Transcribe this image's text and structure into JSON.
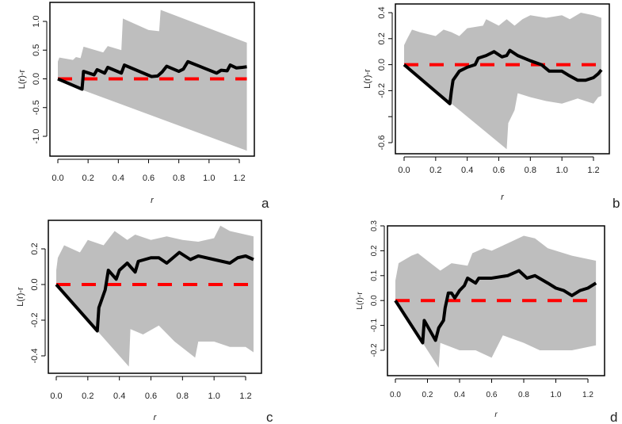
{
  "chart_data": [
    {
      "panel": "a",
      "type": "line",
      "title": "",
      "xlabel": "r",
      "ylabel": "L(r)-r",
      "xlim": [
        0,
        1.25
      ],
      "ylim": [
        -1.35,
        1.3
      ],
      "xticks": [
        0,
        0.2,
        0.4,
        0.6,
        0.8,
        1.0,
        1.2
      ],
      "xtick_labels": [
        "0.0",
        "0.2",
        "0.4",
        "0.6",
        "0.8",
        "1.0",
        "1.2"
      ],
      "yticks": [
        -1.0,
        -0.5,
        0,
        0.5,
        1.0
      ],
      "ytick_labels": [
        "-1.0",
        "-0.5",
        "0.0",
        "0.5",
        "1.0"
      ],
      "series": [
        {
          "name": "envelope upper",
          "points": [
            [
              0,
              0.3
            ],
            [
              0.01,
              0.37
            ],
            [
              0.1,
              0.33
            ],
            [
              0.12,
              0.38
            ],
            [
              0.15,
              0.36
            ],
            [
              0.17,
              0.56
            ],
            [
              0.3,
              0.46
            ],
            [
              0.33,
              0.57
            ],
            [
              0.42,
              0.5
            ],
            [
              0.43,
              1.05
            ],
            [
              0.6,
              0.85
            ],
            [
              0.67,
              0.83
            ],
            [
              0.68,
              1.2
            ],
            [
              1.25,
              0.63
            ]
          ]
        },
        {
          "name": "envelope lower",
          "points": [
            [
              0,
              0
            ],
            [
              0.17,
              -0.2
            ],
            [
              1.25,
              -1.25
            ]
          ]
        },
        {
          "name": "observed",
          "points": [
            [
              0,
              0
            ],
            [
              0.16,
              -0.18
            ],
            [
              0.17,
              0.13
            ],
            [
              0.24,
              0.07
            ],
            [
              0.26,
              0.16
            ],
            [
              0.31,
              0.1
            ],
            [
              0.33,
              0.2
            ],
            [
              0.42,
              0.1
            ],
            [
              0.44,
              0.24
            ],
            [
              0.62,
              0.04
            ],
            [
              0.66,
              0.05
            ],
            [
              0.69,
              0.12
            ],
            [
              0.72,
              0.22
            ],
            [
              0.8,
              0.13
            ],
            [
              0.83,
              0.17
            ],
            [
              0.86,
              0.3
            ],
            [
              1.05,
              0.1
            ],
            [
              1.08,
              0.15
            ],
            [
              1.12,
              0.14
            ],
            [
              1.14,
              0.24
            ],
            [
              1.18,
              0.19
            ],
            [
              1.22,
              0.2
            ],
            [
              1.25,
              0.21
            ]
          ]
        },
        {
          "name": "theoretical",
          "points": [
            [
              0,
              0
            ],
            [
              1.25,
              0
            ]
          ]
        }
      ]
    },
    {
      "panel": "b",
      "type": "line",
      "title": "",
      "xlabel": "r",
      "ylabel": "L(r)-r",
      "xlim": [
        0,
        1.25
      ],
      "ylim": [
        -0.7,
        0.45
      ],
      "xticks": [
        0,
        0.2,
        0.4,
        0.6,
        0.8,
        1.0,
        1.2
      ],
      "xtick_labels": [
        "0.0",
        "0.2",
        "0.4",
        "0.6",
        "0.8",
        "1.0",
        "1.2"
      ],
      "yticks": [
        -0.6,
        -0.4,
        -0.2,
        0,
        0.2,
        0.4
      ],
      "ytick_labels": [
        "-0.6",
        "",
        "-0.2",
        "0.0",
        "0.2",
        "0.4"
      ],
      "series": [
        {
          "name": "envelope upper",
          "points": [
            [
              0,
              0.15
            ],
            [
              0.02,
              0.2
            ],
            [
              0.05,
              0.27
            ],
            [
              0.1,
              0.25
            ],
            [
              0.2,
              0.22
            ],
            [
              0.25,
              0.27
            ],
            [
              0.3,
              0.25
            ],
            [
              0.35,
              0.22
            ],
            [
              0.4,
              0.28
            ],
            [
              0.5,
              0.3
            ],
            [
              0.52,
              0.35
            ],
            [
              0.6,
              0.3
            ],
            [
              0.65,
              0.35
            ],
            [
              0.7,
              0.3
            ],
            [
              0.75,
              0.35
            ],
            [
              0.8,
              0.38
            ],
            [
              0.9,
              0.36
            ],
            [
              1.0,
              0.38
            ],
            [
              1.05,
              0.35
            ],
            [
              1.12,
              0.4
            ],
            [
              1.2,
              0.38
            ],
            [
              1.25,
              0.36
            ]
          ]
        },
        {
          "name": "envelope lower",
          "points": [
            [
              0,
              0
            ],
            [
              0.3,
              -0.3
            ],
            [
              0.65,
              -0.65
            ],
            [
              0.66,
              -0.45
            ],
            [
              0.7,
              -0.35
            ],
            [
              0.72,
              -0.22
            ],
            [
              0.8,
              -0.25
            ],
            [
              0.9,
              -0.28
            ],
            [
              1.0,
              -0.3
            ],
            [
              1.1,
              -0.26
            ],
            [
              1.2,
              -0.3
            ],
            [
              1.23,
              -0.25
            ],
            [
              1.25,
              -0.24
            ]
          ]
        },
        {
          "name": "observed",
          "points": [
            [
              0,
              0
            ],
            [
              0.29,
              -0.3
            ],
            [
              0.3,
              -0.2
            ],
            [
              0.31,
              -0.12
            ],
            [
              0.35,
              -0.05
            ],
            [
              0.4,
              -0.02
            ],
            [
              0.45,
              0
            ],
            [
              0.47,
              0.05
            ],
            [
              0.52,
              0.07
            ],
            [
              0.57,
              0.1
            ],
            [
              0.62,
              0.06
            ],
            [
              0.65,
              0.07
            ],
            [
              0.67,
              0.11
            ],
            [
              0.72,
              0.07
            ],
            [
              0.8,
              0.03
            ],
            [
              0.87,
              0
            ],
            [
              0.92,
              -0.05
            ],
            [
              1.0,
              -0.05
            ],
            [
              1.04,
              -0.08
            ],
            [
              1.1,
              -0.12
            ],
            [
              1.15,
              -0.12
            ],
            [
              1.2,
              -0.1
            ],
            [
              1.23,
              -0.07
            ],
            [
              1.25,
              -0.04
            ]
          ]
        },
        {
          "name": "theoretical",
          "points": [
            [
              0,
              0
            ],
            [
              1.25,
              0
            ]
          ]
        }
      ]
    },
    {
      "panel": "c",
      "type": "line",
      "title": "",
      "xlabel": "r",
      "ylabel": "L(r)-r",
      "xlim": [
        0,
        1.25
      ],
      "ylim": [
        -0.5,
        0.35
      ],
      "xticks": [
        0,
        0.2,
        0.4,
        0.6,
        0.8,
        1.0,
        1.2
      ],
      "xtick_labels": [
        "0.0",
        "0.2",
        "0.4",
        "0.6",
        "0.8",
        "1.0",
        "1.2"
      ],
      "yticks": [
        -0.4,
        -0.2,
        0,
        0.2
      ],
      "ytick_labels": [
        "-0.4",
        "-0.2",
        "0.0",
        "0.2"
      ],
      "series": [
        {
          "name": "envelope upper",
          "points": [
            [
              0,
              0.08
            ],
            [
              0.01,
              0.15
            ],
            [
              0.05,
              0.22
            ],
            [
              0.15,
              0.18
            ],
            [
              0.2,
              0.25
            ],
            [
              0.3,
              0.22
            ],
            [
              0.37,
              0.3
            ],
            [
              0.45,
              0.25
            ],
            [
              0.5,
              0.28
            ],
            [
              0.6,
              0.25
            ],
            [
              0.7,
              0.27
            ],
            [
              0.8,
              0.25
            ],
            [
              0.9,
              0.24
            ],
            [
              1.0,
              0.26
            ],
            [
              1.04,
              0.33
            ],
            [
              1.1,
              0.3
            ],
            [
              1.2,
              0.28
            ],
            [
              1.25,
              0.27
            ]
          ]
        },
        {
          "name": "envelope lower",
          "points": [
            [
              0,
              0
            ],
            [
              0.46,
              -0.46
            ],
            [
              0.47,
              -0.25
            ],
            [
              0.55,
              -0.28
            ],
            [
              0.65,
              -0.23
            ],
            [
              0.75,
              -0.32
            ],
            [
              0.88,
              -0.41
            ],
            [
              0.9,
              -0.32
            ],
            [
              1.0,
              -0.32
            ],
            [
              1.1,
              -0.35
            ],
            [
              1.2,
              -0.35
            ],
            [
              1.25,
              -0.38
            ]
          ]
        },
        {
          "name": "observed",
          "points": [
            [
              0,
              0
            ],
            [
              0.26,
              -0.26
            ],
            [
              0.27,
              -0.13
            ],
            [
              0.29,
              -0.08
            ],
            [
              0.31,
              -0.03
            ],
            [
              0.33,
              0.08
            ],
            [
              0.38,
              0.03
            ],
            [
              0.4,
              0.08
            ],
            [
              0.45,
              0.12
            ],
            [
              0.48,
              0.09
            ],
            [
              0.5,
              0.07
            ],
            [
              0.52,
              0.13
            ],
            [
              0.6,
              0.15
            ],
            [
              0.65,
              0.15
            ],
            [
              0.7,
              0.12
            ],
            [
              0.78,
              0.18
            ],
            [
              0.85,
              0.14
            ],
            [
              0.9,
              0.16
            ],
            [
              1.0,
              0.14
            ],
            [
              1.05,
              0.13
            ],
            [
              1.1,
              0.12
            ],
            [
              1.15,
              0.15
            ],
            [
              1.2,
              0.16
            ],
            [
              1.25,
              0.14
            ]
          ]
        },
        {
          "name": "theoretical",
          "points": [
            [
              0,
              0
            ],
            [
              1.25,
              0
            ]
          ]
        }
      ]
    },
    {
      "panel": "d",
      "type": "line",
      "title": "",
      "xlabel": "r",
      "ylabel": "L(r)-r",
      "xlim": [
        0,
        1.25
      ],
      "ylim": [
        -0.3,
        0.3
      ],
      "xticks": [
        0,
        0.2,
        0.4,
        0.6,
        0.8,
        1.0,
        1.2
      ],
      "xtick_labels": [
        "0.0",
        "0.2",
        "0.4",
        "0.6",
        "0.8",
        "1.0",
        "1.2"
      ],
      "yticks": [
        -0.2,
        -0.1,
        0,
        0.1,
        0.2,
        0.3
      ],
      "ytick_labels": [
        "-0.2",
        "-0.1",
        "0.0",
        "0.1",
        "0.2",
        "0.3"
      ],
      "series": [
        {
          "name": "envelope upper",
          "points": [
            [
              0,
              0.08
            ],
            [
              0.02,
              0.15
            ],
            [
              0.1,
              0.18
            ],
            [
              0.14,
              0.19
            ],
            [
              0.2,
              0.16
            ],
            [
              0.28,
              0.12
            ],
            [
              0.35,
              0.15
            ],
            [
              0.45,
              0.14
            ],
            [
              0.48,
              0.19
            ],
            [
              0.55,
              0.21
            ],
            [
              0.6,
              0.2
            ],
            [
              0.7,
              0.23
            ],
            [
              0.8,
              0.26
            ],
            [
              0.87,
              0.25
            ],
            [
              0.95,
              0.21
            ],
            [
              1.0,
              0.2
            ],
            [
              1.1,
              0.18
            ],
            [
              1.25,
              0.16
            ]
          ]
        },
        {
          "name": "envelope lower",
          "points": [
            [
              0,
              0
            ],
            [
              0.27,
              -0.27
            ],
            [
              0.28,
              -0.17
            ],
            [
              0.4,
              -0.2
            ],
            [
              0.5,
              -0.2
            ],
            [
              0.6,
              -0.23
            ],
            [
              0.67,
              -0.14
            ],
            [
              0.8,
              -0.17
            ],
            [
              0.9,
              -0.2
            ],
            [
              1.0,
              -0.2
            ],
            [
              1.1,
              -0.2
            ],
            [
              1.25,
              -0.18
            ]
          ]
        },
        {
          "name": "observed",
          "points": [
            [
              0,
              0
            ],
            [
              0.17,
              -0.17
            ],
            [
              0.18,
              -0.08
            ],
            [
              0.25,
              -0.16
            ],
            [
              0.27,
              -0.11
            ],
            [
              0.3,
              -0.08
            ],
            [
              0.31,
              -0.03
            ],
            [
              0.33,
              0.03
            ],
            [
              0.35,
              0.03
            ],
            [
              0.37,
              0.01
            ],
            [
              0.4,
              0.04
            ],
            [
              0.43,
              0.06
            ],
            [
              0.45,
              0.09
            ],
            [
              0.5,
              0.07
            ],
            [
              0.52,
              0.09
            ],
            [
              0.6,
              0.09
            ],
            [
              0.7,
              0.1
            ],
            [
              0.77,
              0.12
            ],
            [
              0.82,
              0.09
            ],
            [
              0.87,
              0.1
            ],
            [
              0.95,
              0.07
            ],
            [
              1.0,
              0.05
            ],
            [
              1.05,
              0.04
            ],
            [
              1.1,
              0.02
            ],
            [
              1.15,
              0.04
            ],
            [
              1.2,
              0.05
            ],
            [
              1.25,
              0.07
            ]
          ]
        },
        {
          "name": "theoretical",
          "points": [
            [
              0,
              0
            ],
            [
              1.25,
              0
            ]
          ]
        }
      ]
    }
  ],
  "colors": {
    "envelope": "#bebebe",
    "observed": "#000000",
    "theoretical": "#ff0000"
  }
}
